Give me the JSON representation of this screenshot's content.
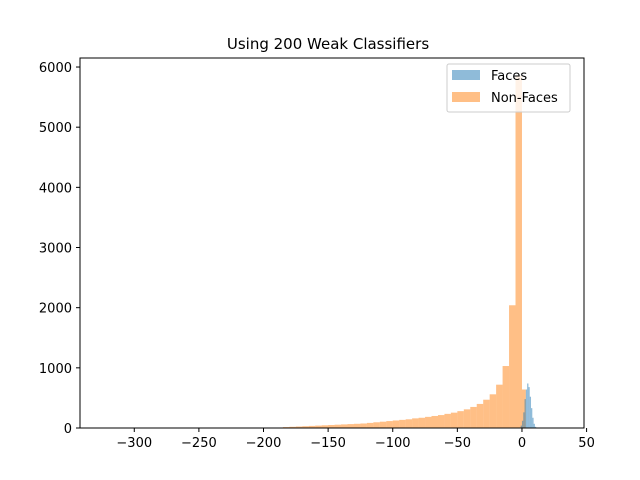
{
  "chart_data": {
    "type": "histogram",
    "title": "Using 200 Weak Classifiers",
    "xlabel": "",
    "ylabel": "",
    "xlim": [
      -342,
      48
    ],
    "ylim": [
      0,
      6150
    ],
    "xticks": [
      -300,
      -250,
      -200,
      -150,
      -100,
      -50,
      0,
      50
    ],
    "xtick_labels": [
      "−300",
      "−250",
      "−200",
      "−150",
      "−100",
      "−50",
      "0",
      "50"
    ],
    "yticks": [
      0,
      1000,
      2000,
      3000,
      4000,
      5000,
      6000
    ],
    "ytick_labels": [
      "0",
      "1000",
      "2000",
      "3000",
      "4000",
      "5000",
      "6000"
    ],
    "legend_position": "top-right",
    "series": [
      {
        "name": "Non-Faces",
        "color": "#ff7f0e",
        "opacity": 0.5,
        "bins": [
          {
            "x0": -185,
            "x1": -180,
            "value": 15
          },
          {
            "x0": -180,
            "x1": -175,
            "value": 20
          },
          {
            "x0": -175,
            "x1": -170,
            "value": 25
          },
          {
            "x0": -170,
            "x1": -165,
            "value": 30
          },
          {
            "x0": -165,
            "x1": -160,
            "value": 35
          },
          {
            "x0": -160,
            "x1": -155,
            "value": 40
          },
          {
            "x0": -155,
            "x1": -150,
            "value": 45
          },
          {
            "x0": -150,
            "x1": -145,
            "value": 50
          },
          {
            "x0": -145,
            "x1": -140,
            "value": 55
          },
          {
            "x0": -140,
            "x1": -135,
            "value": 60
          },
          {
            "x0": -135,
            "x1": -130,
            "value": 65
          },
          {
            "x0": -130,
            "x1": -125,
            "value": 70
          },
          {
            "x0": -125,
            "x1": -120,
            "value": 75
          },
          {
            "x0": -120,
            "x1": -115,
            "value": 85
          },
          {
            "x0": -115,
            "x1": -110,
            "value": 95
          },
          {
            "x0": -110,
            "x1": -105,
            "value": 105
          },
          {
            "x0": -105,
            "x1": -100,
            "value": 115
          },
          {
            "x0": -100,
            "x1": -95,
            "value": 125
          },
          {
            "x0": -95,
            "x1": -90,
            "value": 135
          },
          {
            "x0": -90,
            "x1": -85,
            "value": 145
          },
          {
            "x0": -85,
            "x1": -80,
            "value": 160
          },
          {
            "x0": -80,
            "x1": -75,
            "value": 170
          },
          {
            "x0": -75,
            "x1": -70,
            "value": 185
          },
          {
            "x0": -70,
            "x1": -65,
            "value": 200
          },
          {
            "x0": -65,
            "x1": -60,
            "value": 215
          },
          {
            "x0": -60,
            "x1": -55,
            "value": 235
          },
          {
            "x0": -55,
            "x1": -50,
            "value": 255
          },
          {
            "x0": -50,
            "x1": -45,
            "value": 280
          },
          {
            "x0": -45,
            "x1": -40,
            "value": 310
          },
          {
            "x0": -40,
            "x1": -35,
            "value": 350
          },
          {
            "x0": -35,
            "x1": -30,
            "value": 400
          },
          {
            "x0": -30,
            "x1": -25,
            "value": 470
          },
          {
            "x0": -25,
            "x1": -20,
            "value": 560
          },
          {
            "x0": -20,
            "x1": -15,
            "value": 720
          },
          {
            "x0": -15,
            "x1": -10,
            "value": 1030
          },
          {
            "x0": -10,
            "x1": -5,
            "value": 2040
          },
          {
            "x0": -5,
            "x1": 0,
            "value": 5850
          },
          {
            "x0": 0,
            "x1": 3,
            "value": 640
          }
        ]
      },
      {
        "name": "Faces",
        "color": "#1f77b4",
        "opacity": 0.5,
        "bins": [
          {
            "x0": -1,
            "x1": 0,
            "value": 40
          },
          {
            "x0": 0,
            "x1": 1,
            "value": 120
          },
          {
            "x0": 1,
            "x1": 2,
            "value": 260
          },
          {
            "x0": 2,
            "x1": 3,
            "value": 480
          },
          {
            "x0": 3,
            "x1": 4,
            "value": 640
          },
          {
            "x0": 4,
            "x1": 5,
            "value": 740
          },
          {
            "x0": 5,
            "x1": 6,
            "value": 680
          },
          {
            "x0": 6,
            "x1": 7,
            "value": 520
          },
          {
            "x0": 7,
            "x1": 8,
            "value": 330
          },
          {
            "x0": 8,
            "x1": 9,
            "value": 170
          },
          {
            "x0": 9,
            "x1": 10,
            "value": 70
          },
          {
            "x0": 10,
            "x1": 11,
            "value": 20
          }
        ]
      }
    ],
    "legend": [
      {
        "label": "Faces",
        "color": "#1f77b4"
      },
      {
        "label": "Non-Faces",
        "color": "#ff7f0e"
      }
    ]
  }
}
